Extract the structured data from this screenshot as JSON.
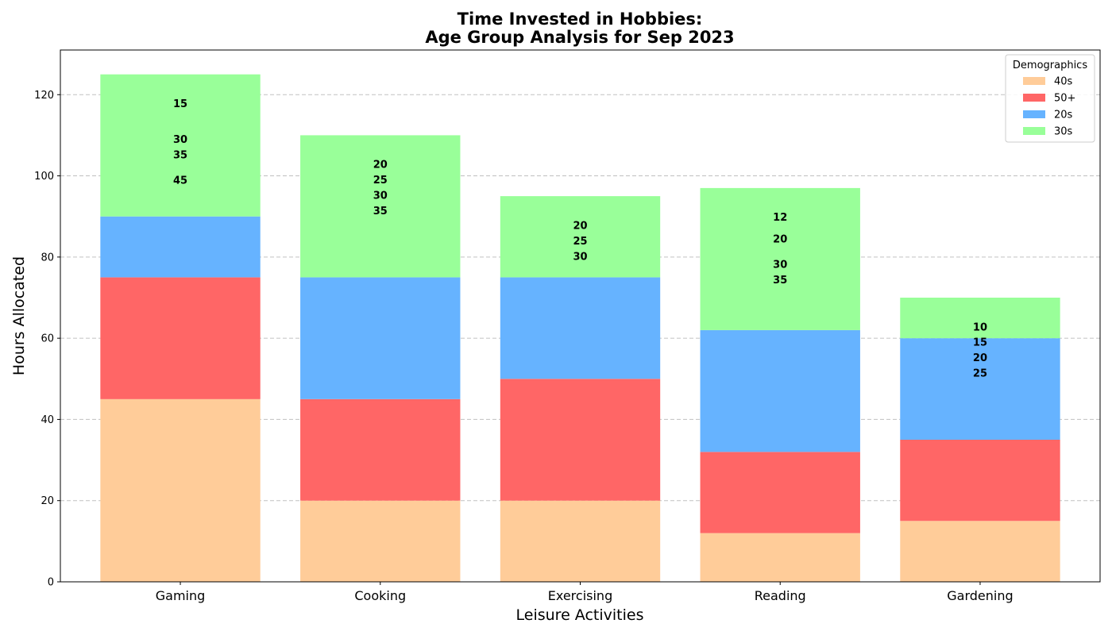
{
  "chart_data": {
    "type": "bar",
    "stacked": true,
    "title_line1": "Time Invested in Hobbies:",
    "title_line2": "Age Group Analysis for Sep 2023",
    "xlabel": "Leisure Activities",
    "ylabel": "Hours Allocated",
    "ylim": [
      0,
      131
    ],
    "yticks": [
      0,
      20,
      40,
      60,
      80,
      100,
      120
    ],
    "grid": "y-dashed",
    "categories": [
      "Gaming",
      "Cooking",
      "Exercising",
      "Reading",
      "Gardening"
    ],
    "series": [
      {
        "name": "40s",
        "color": "#ffcc99",
        "values": [
          45,
          20,
          20,
          12,
          15
        ]
      },
      {
        "name": "50+",
        "color": "#ff6666",
        "values": [
          30,
          25,
          30,
          20,
          20
        ]
      },
      {
        "name": "20s",
        "color": "#66b3ff",
        "values": [
          15,
          30,
          25,
          30,
          25
        ]
      },
      {
        "name": "30s",
        "color": "#99ff99",
        "values": [
          35,
          35,
          20,
          35,
          10
        ]
      }
    ],
    "data_labels": [
      [
        "15",
        "30",
        "35",
        "45"
      ],
      [
        "20",
        "25",
        "30",
        "35"
      ],
      [
        "20",
        "25",
        "30"
      ],
      [
        "12",
        "20",
        "30",
        "35"
      ],
      [
        "10",
        "15",
        "20",
        "25"
      ]
    ],
    "data_label_values": [
      [
        15,
        30,
        35,
        45
      ],
      [
        20,
        25,
        30,
        35
      ],
      [
        20,
        25,
        30
      ],
      [
        12,
        20,
        30,
        35
      ],
      [
        10,
        15,
        20,
        25
      ]
    ],
    "legend": {
      "title": "Demographics",
      "position": "top-right",
      "entries": [
        "40s",
        "50+",
        "20s",
        "30s"
      ]
    }
  }
}
